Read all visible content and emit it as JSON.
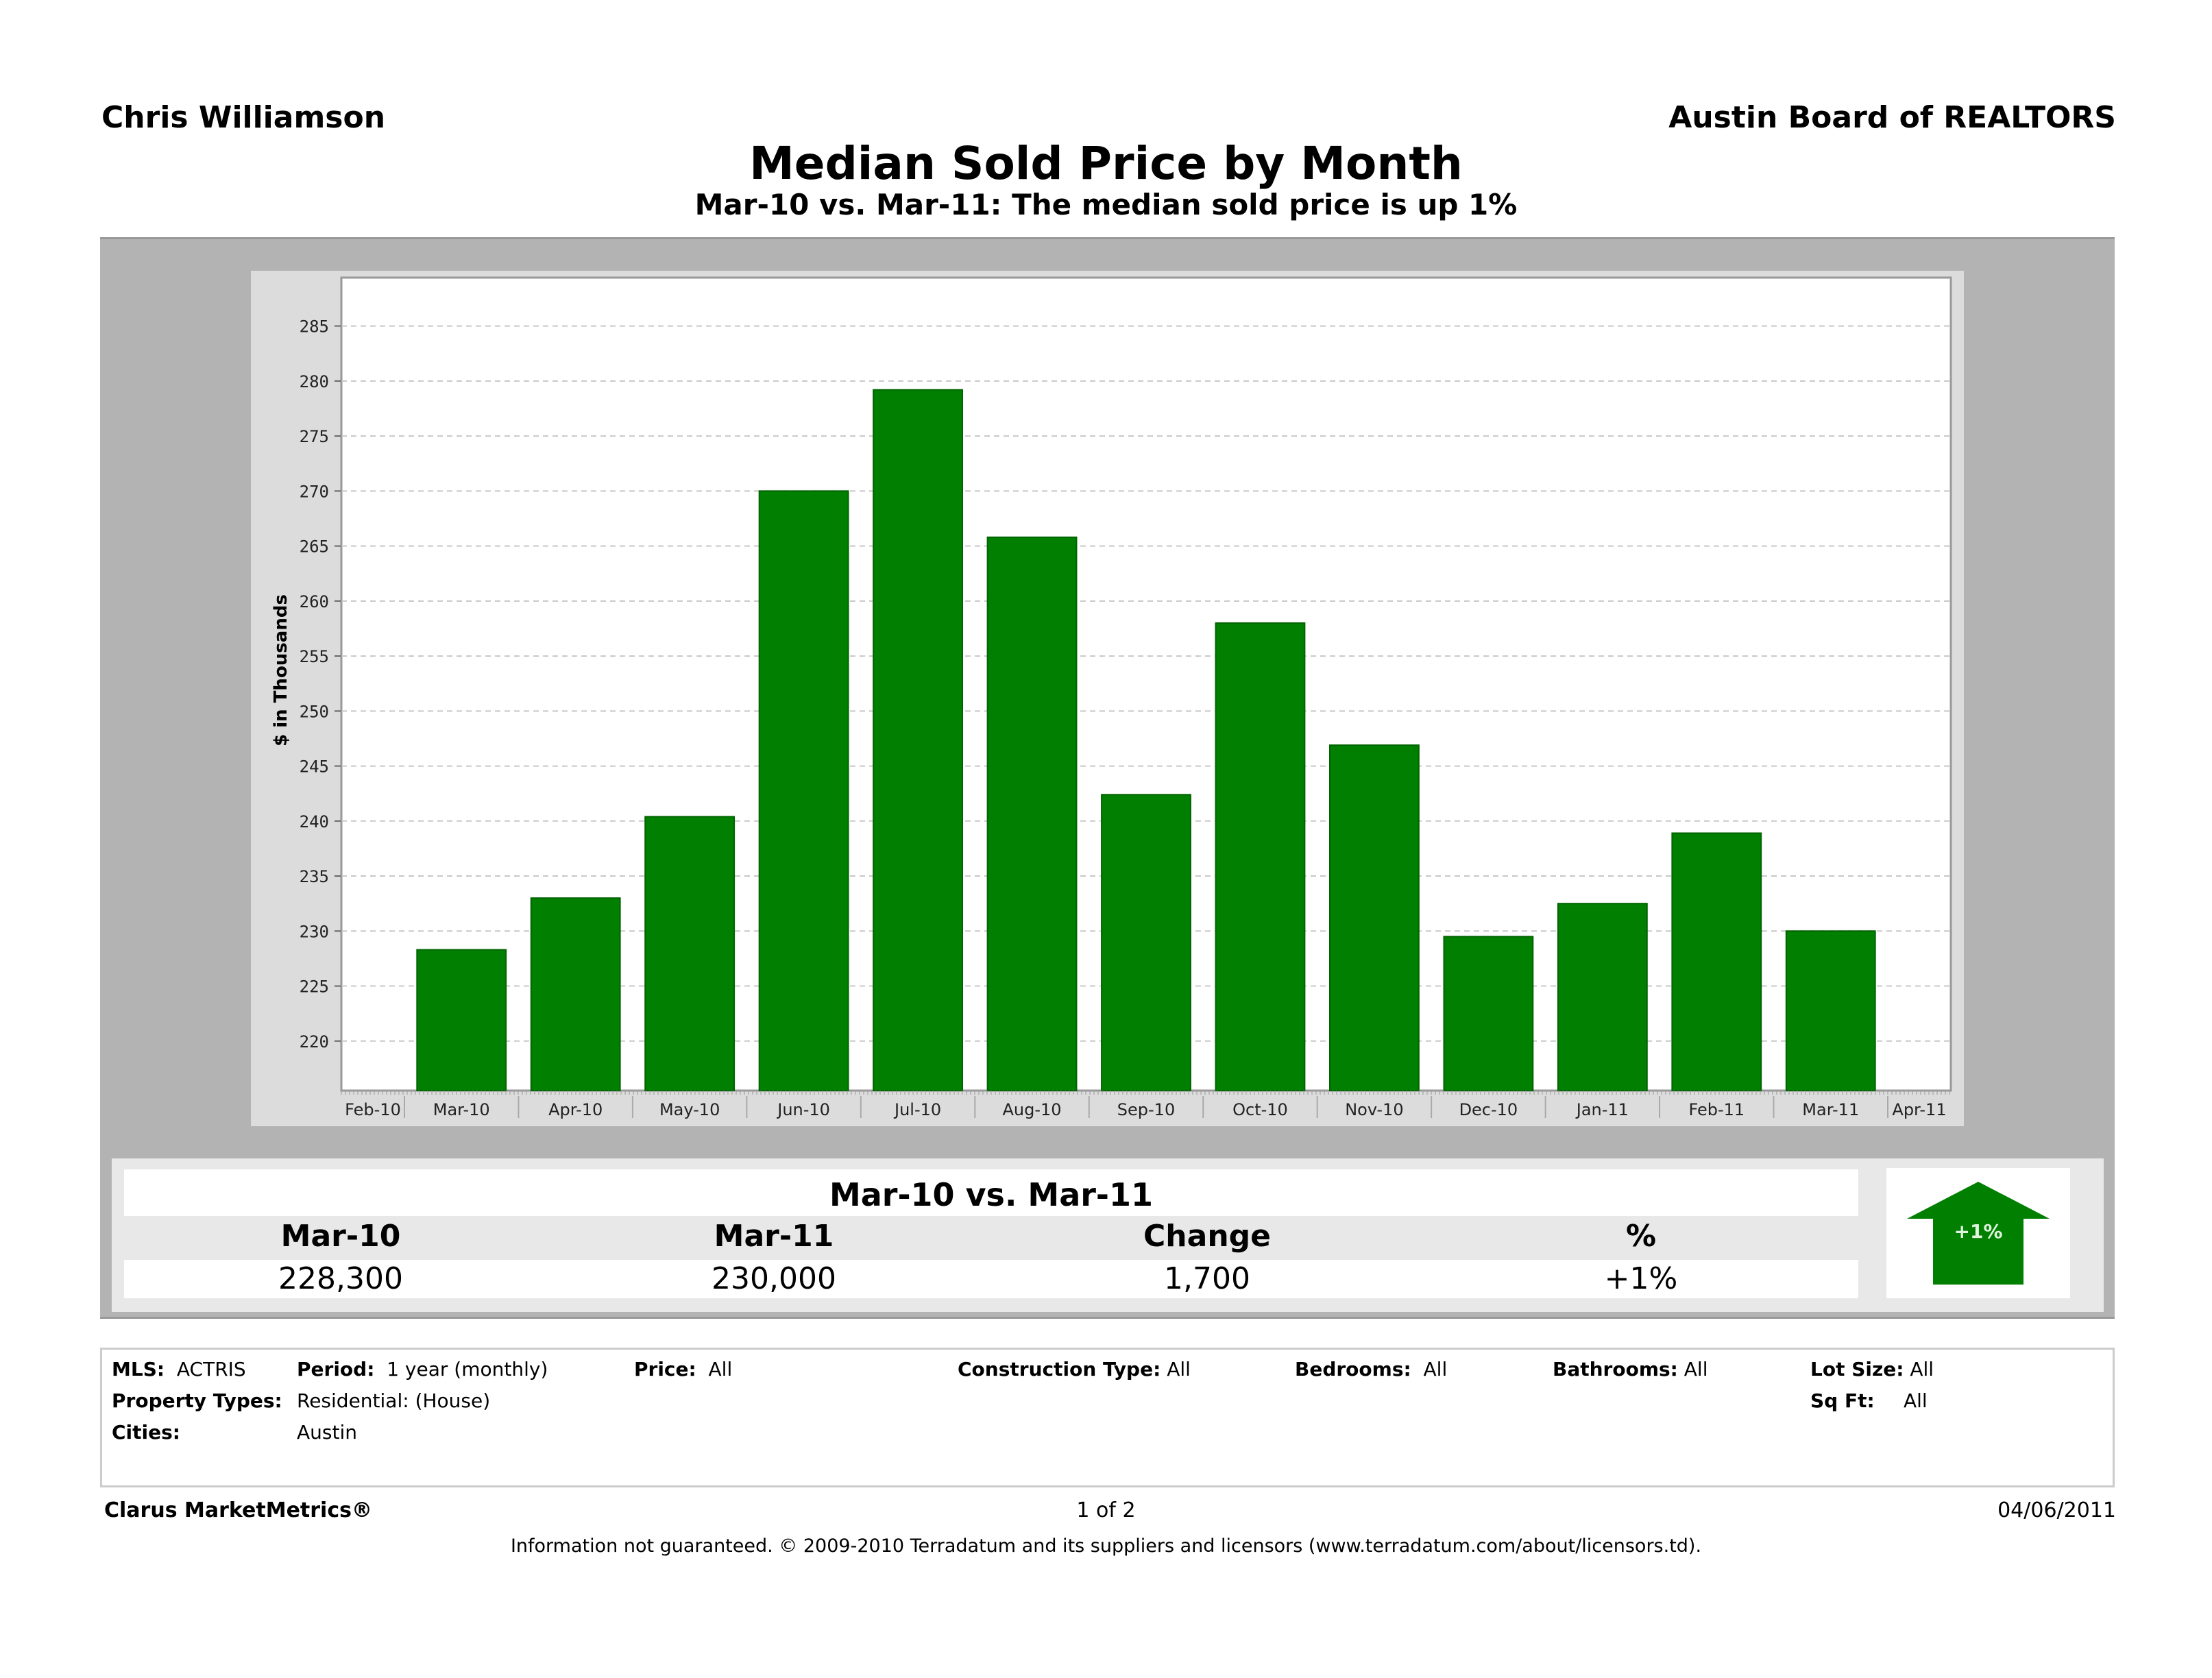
{
  "header": {
    "agent": "Chris Williamson",
    "board": "Austin Board of REALTORS",
    "title": "Median Sold Price by Month",
    "subtitle": "Mar-10 vs. Mar-11:  The median sold price is up 1%"
  },
  "colors": {
    "bar": "#007f00",
    "outer_panel": "#b3b3b3",
    "chart_panel": "#dcdcdc",
    "arrow": "#007f00"
  },
  "chart_data": {
    "type": "bar",
    "title": "Median Sold Price by Month",
    "xlabel": "",
    "ylabel": "$ in Thousands",
    "categories": [
      "Feb-10",
      "Mar-10",
      "Apr-10",
      "May-10",
      "Jun-10",
      "Jul-10",
      "Aug-10",
      "Sep-10",
      "Oct-10",
      "Nov-10",
      "Dec-10",
      "Jan-11",
      "Feb-11",
      "Mar-11",
      "Apr-11"
    ],
    "values": [
      null,
      228.3,
      233.0,
      240.4,
      270.0,
      279.2,
      265.8,
      242.4,
      258.0,
      246.9,
      229.5,
      232.5,
      238.9,
      230.0,
      null
    ],
    "yticks": [
      220,
      225,
      230,
      235,
      240,
      245,
      250,
      255,
      260,
      265,
      270,
      275,
      280,
      285
    ],
    "ylim": [
      215.5,
      289.4
    ],
    "grid": true,
    "legend": "none"
  },
  "comparison": {
    "title": "Mar-10 vs. Mar-11",
    "headers": [
      "Mar-10",
      "Mar-11",
      "Change",
      "%"
    ],
    "values": [
      "228,300",
      "230,000",
      "1,700",
      "+1%"
    ],
    "arrow_label": "+1%",
    "arrow_direction": "up"
  },
  "criteria": {
    "mls_label": "MLS:",
    "mls_value": "ACTRIS",
    "period_label": "Period:",
    "period_value": "1 year (monthly)",
    "price_label": "Price:",
    "price_value": "All",
    "construction_label": "Construction Type:",
    "construction_value": "All",
    "bedrooms_label": "Bedrooms:",
    "bedrooms_value": "All",
    "bathrooms_label": "Bathrooms:",
    "bathrooms_value": "All",
    "lotsize_label": "Lot Size:",
    "lotsize_value": "All",
    "proptypes_label": "Property Types:",
    "proptypes_value": "Residential: (House)",
    "sqft_label": "Sq Ft:",
    "sqft_value": "All",
    "cities_label": "Cities:",
    "cities_value": "Austin"
  },
  "footer": {
    "brand": "Clarus MarketMetrics®",
    "page": "1 of 2",
    "date": "04/06/2011",
    "disclaimer": "Information not guaranteed.  © 2009-2010 Terradatum and its suppliers and licensors (www.terradatum.com/about/licensors.td)."
  }
}
